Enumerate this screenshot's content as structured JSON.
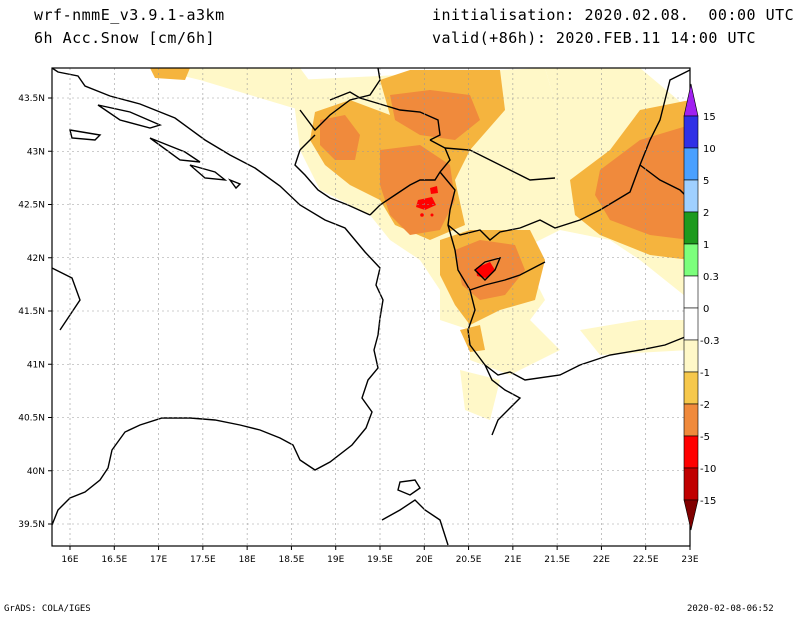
{
  "header": {
    "model": "wrf-nmmE_v3.9.1-a3km",
    "variable": "6h Acc.Snow [cm/6h]",
    "init": "initialisation: 2020.02.08.  00:00 UTC",
    "valid": "valid(+86h): 2020.FEB.11 14:00 UTC"
  },
  "map": {
    "lat_labels": [
      "43.5N",
      "43N",
      "42.5N",
      "42N",
      "41.5N",
      "41N",
      "40.5N",
      "40N",
      "39.5N"
    ],
    "lon_labels": [
      "16E",
      "16.5E",
      "17E",
      "17.5E",
      "18E",
      "18.5E",
      "19E",
      "19.5E",
      "20E",
      "20.5E",
      "21E",
      "21.5E",
      "22E",
      "22.5E",
      "23E"
    ],
    "lat_range": [
      39.5,
      43.5
    ],
    "lon_range": [
      16,
      23
    ],
    "grid": true
  },
  "colorbar": {
    "labels_positive": [
      "15",
      "10",
      "5",
      "2",
      "1",
      "0.3",
      "0"
    ],
    "labels_negative": [
      "-0.3",
      "-1",
      "-2",
      "-5",
      "-10",
      "-15"
    ],
    "colors_positive": [
      "#a020f0",
      "#3030e6",
      "#4aa0ff",
      "#a0d0ff",
      "#1e9a1e",
      "#7cff7c",
      "#ffffff"
    ],
    "colors_negative": [
      "#ffffff",
      "#fff8c8",
      "#f6c84c",
      "#f08a3c",
      "#ff0000",
      "#c00000",
      "#800000"
    ]
  },
  "footer": {
    "left": "GrADS: COLA/IGES",
    "right": "2020-02-08-06:52"
  }
}
